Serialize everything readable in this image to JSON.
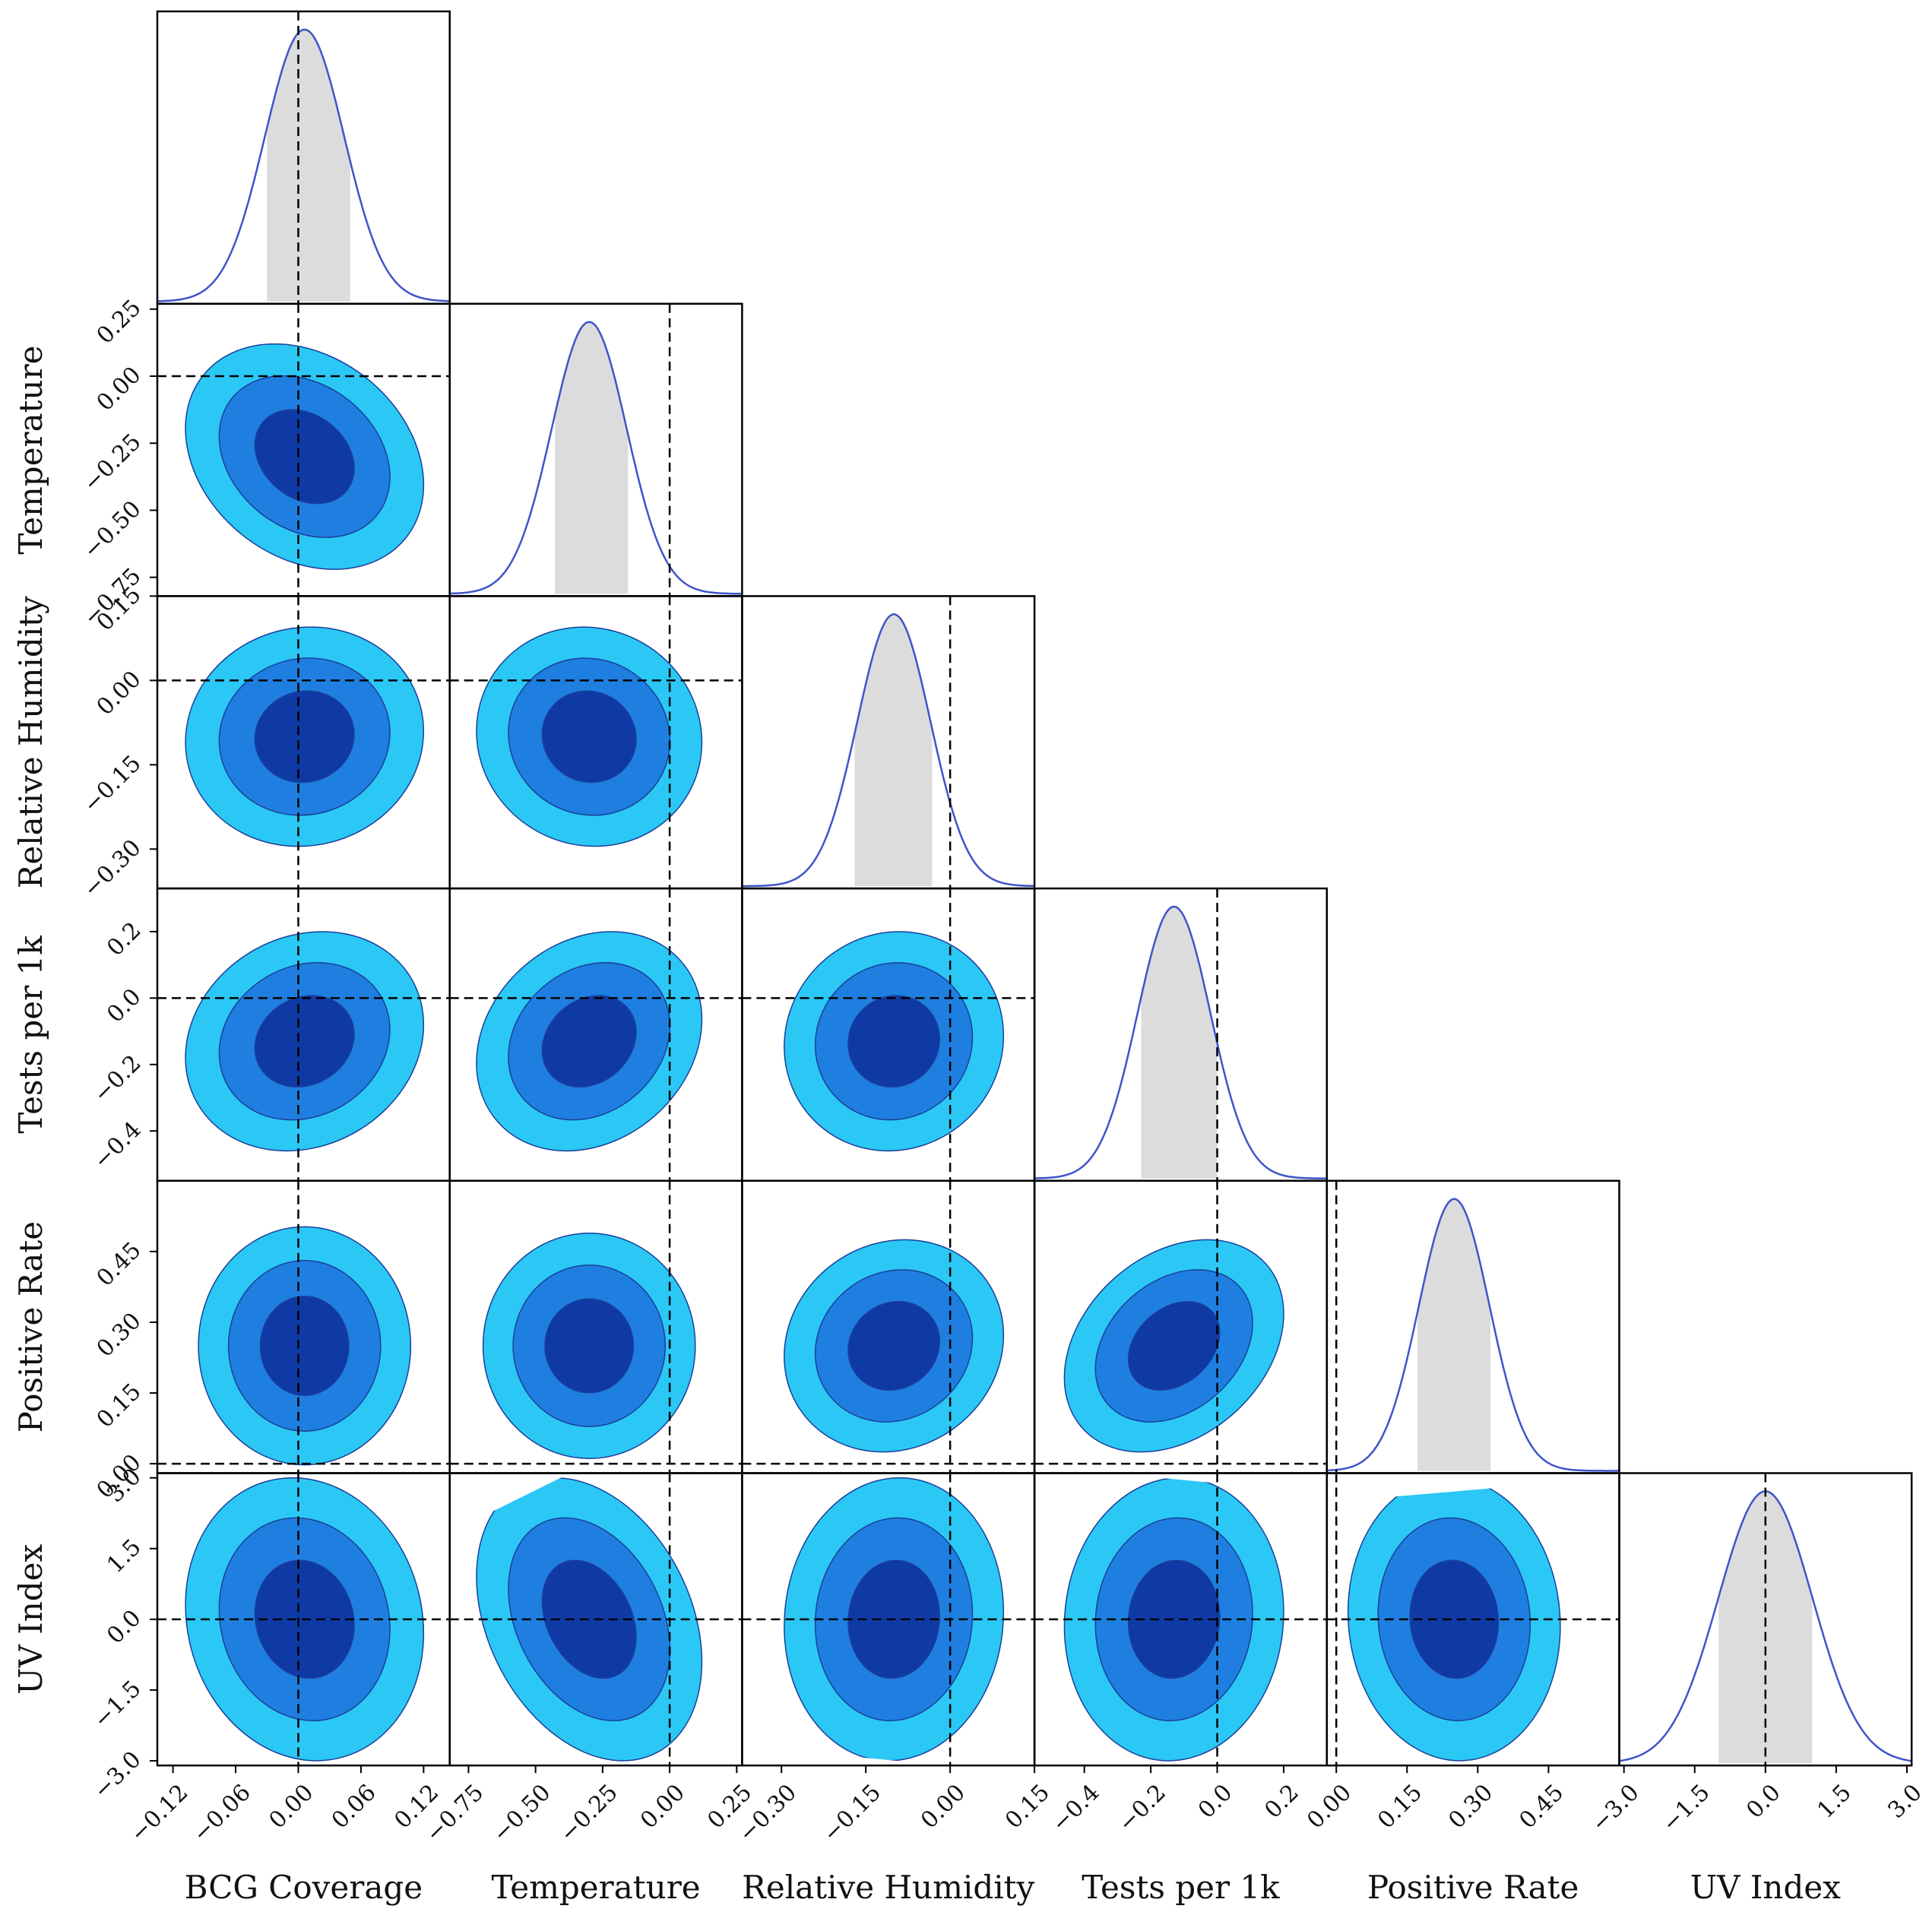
{
  "chart_data": {
    "type": "corner",
    "variables": [
      {
        "name": "BCG Coverage",
        "range": [
          -0.135,
          0.145
        ],
        "ticks": [
          -0.12,
          -0.06,
          0.0,
          0.06,
          0.12
        ],
        "tick_labels": [
          "−0.12",
          "−0.06",
          "0.00",
          "0.06",
          "0.12"
        ],
        "truth": 0.0,
        "mean": 0.006,
        "sd": 0.038,
        "interval": [
          -0.03,
          0.05
        ]
      },
      {
        "name": "Temperature",
        "range": [
          -0.82,
          0.27
        ],
        "ticks": [
          -0.75,
          -0.5,
          -0.25,
          0.0,
          0.25
        ],
        "tick_labels": [
          "−0.75",
          "−0.50",
          "−0.25",
          "0.00",
          "0.25"
        ],
        "truth": 0.0,
        "mean": -0.3,
        "sd": 0.14,
        "interval": [
          -0.43,
          -0.15
        ]
      },
      {
        "name": "Relative Humidity",
        "range": [
          -0.37,
          0.15
        ],
        "ticks": [
          -0.3,
          -0.15,
          0.0,
          0.15
        ],
        "tick_labels": [
          "−0.30",
          "−0.15",
          "0.00",
          "0.15"
        ],
        "truth": 0.0,
        "mean": -0.1,
        "sd": 0.065,
        "interval": [
          -0.17,
          -0.03
        ]
      },
      {
        "name": "Tests per 1k",
        "range": [
          -0.55,
          0.33
        ],
        "ticks": [
          -0.4,
          -0.2,
          0.0,
          0.2
        ],
        "tick_labels": [
          "−0.4",
          "−0.2",
          "0.0",
          "0.2"
        ],
        "truth": 0.0,
        "mean": -0.13,
        "sd": 0.11,
        "interval": [
          -0.23,
          0.0
        ]
      },
      {
        "name": "Positive Rate",
        "range": [
          -0.02,
          0.6
        ],
        "ticks": [
          0.0,
          0.15,
          0.3,
          0.45
        ],
        "tick_labels": [
          "0.00",
          "0.15",
          "0.30",
          "0.45"
        ],
        "truth": 0.0,
        "mean": 0.25,
        "sd": 0.075,
        "interval": [
          0.17,
          0.33
        ]
      },
      {
        "name": "UV Index",
        "range": [
          -3.1,
          3.1
        ],
        "ticks": [
          -3.0,
          -1.5,
          0.0,
          1.5,
          3.0
        ],
        "tick_labels": [
          "−3.0",
          "−1.5",
          "0.0",
          "1.5",
          "3.0"
        ],
        "truth": 0.0,
        "mean": 0.0,
        "sd": 1.0,
        "interval": [
          -1.0,
          1.0
        ]
      }
    ],
    "correlations": [
      [
        1.0,
        -0.25,
        0.05,
        0.15,
        0.0,
        -0.1
      ],
      [
        -0.25,
        1.0,
        -0.05,
        0.2,
        0.0,
        -0.3
      ],
      [
        0.05,
        -0.05,
        1.0,
        0.05,
        0.1,
        0.05
      ],
      [
        0.15,
        0.2,
        0.05,
        1.0,
        0.3,
        0.05
      ],
      [
        0.0,
        0.0,
        0.1,
        0.3,
        1.0,
        -0.05
      ],
      [
        -0.1,
        -0.3,
        0.05,
        0.05,
        -0.05,
        1.0
      ]
    ],
    "contour_colors": [
      "#0f3aa6",
      "#1f7fe0",
      "#2bc8f5"
    ],
    "contour_edge_color": "#1a3f9a",
    "kde_color": "#3f54c8",
    "interval_fill": "#dcdcdc",
    "truth_line_style": "dashed"
  }
}
